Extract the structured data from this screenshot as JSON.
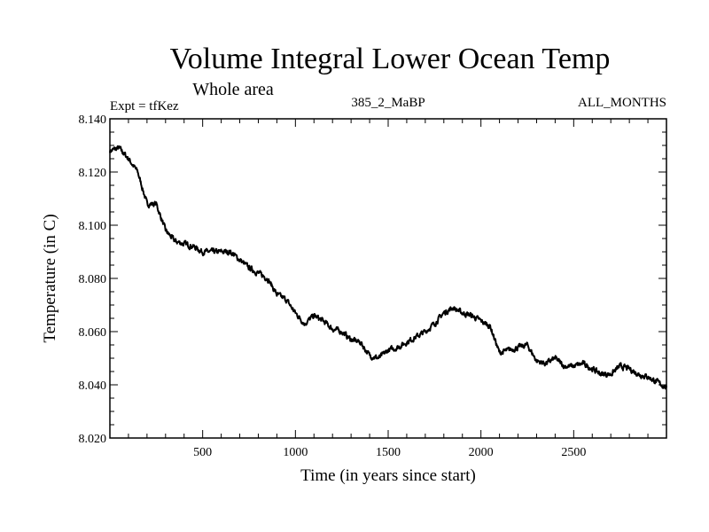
{
  "chart_data": {
    "type": "line",
    "title": "Volume Integral Lower Ocean Temp",
    "subtitle": "Whole area",
    "experiment_label": "Expt = tfKez",
    "run_label": "385_2_MaBP",
    "period_label": "ALL_MONTHS",
    "xlabel": "Time (in years since start)",
    "ylabel": "Temperature (in C)",
    "xlim": [
      0,
      3000
    ],
    "ylim": [
      8.02,
      8.14
    ],
    "x_ticks": [
      500,
      1000,
      1500,
      2000,
      2500
    ],
    "y_ticks": [
      "8.020",
      "8.040",
      "8.060",
      "8.080",
      "8.100",
      "8.120",
      "8.140"
    ],
    "grid": false,
    "line_color": "#000000",
    "series": [
      {
        "x": [
          0,
          50,
          100,
          150,
          200,
          250,
          300,
          350,
          400,
          450,
          500,
          550,
          600,
          650,
          700,
          750,
          800,
          850,
          900,
          950,
          1000,
          1050,
          1100,
          1150,
          1200,
          1250,
          1300,
          1350,
          1400,
          1450,
          1500,
          1550,
          1600,
          1650,
          1700,
          1750,
          1800,
          1850,
          1900,
          1950,
          2000,
          2050,
          2100,
          2150,
          2200,
          2250,
          2300,
          2350,
          2400,
          2450,
          2500,
          2550,
          2600,
          2650,
          2700,
          2750,
          2800,
          2850,
          2900,
          2950,
          3000
        ],
        "values": [
          8.128,
          8.129,
          8.125,
          8.12,
          8.108,
          8.108,
          8.098,
          8.094,
          8.093,
          8.092,
          8.09,
          8.09,
          8.09,
          8.09,
          8.087,
          8.084,
          8.082,
          8.08,
          8.074,
          8.072,
          8.067,
          8.063,
          8.066,
          8.064,
          8.061,
          8.06,
          8.057,
          8.056,
          8.051,
          8.05,
          8.053,
          8.054,
          8.056,
          8.058,
          8.06,
          8.063,
          8.067,
          8.069,
          8.067,
          8.066,
          8.064,
          8.062,
          8.052,
          8.053,
          8.054,
          8.055,
          8.049,
          8.048,
          8.05,
          8.047,
          8.047,
          8.048,
          8.046,
          8.044,
          8.044,
          8.047,
          8.046,
          8.044,
          8.043,
          8.041,
          8.039
        ]
      }
    ]
  }
}
